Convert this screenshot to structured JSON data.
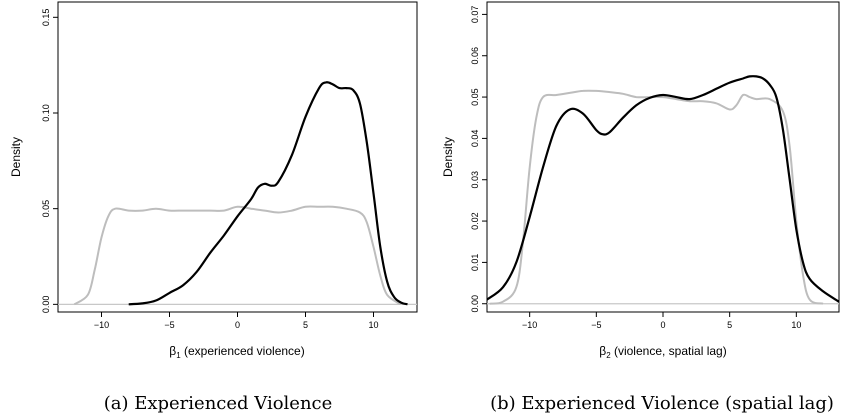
{
  "chart_data": [
    {
      "type": "line",
      "caption": "(a)  Experienced Violence",
      "xlabel_symbol": "β",
      "xlabel_sub": "1",
      "xlabel_rest": " (experienced violence)",
      "ylabel": "Density",
      "xlim": [
        -13.2,
        13.2
      ],
      "ylim": [
        -0.004,
        0.158
      ],
      "xticks": [
        -10,
        -5,
        0,
        5,
        10
      ],
      "yticks": [
        0.0,
        0.05,
        0.1,
        0.15
      ],
      "ytick_labels": [
        "0.00",
        "0.05",
        "0.10",
        "0.15"
      ],
      "baseline": 0,
      "series": [
        {
          "color": "#bdbdbd",
          "x": [
            -12.0,
            -11.0,
            -10.5,
            -10.0,
            -9.5,
            -9.0,
            -8.0,
            -7.0,
            -6.0,
            -5.0,
            -4.0,
            -3.0,
            -2.0,
            -1.0,
            0.0,
            1.0,
            2.0,
            3.0,
            4.0,
            5.0,
            6.0,
            7.0,
            8.0,
            9.0,
            9.5,
            10.0,
            10.5,
            11.0,
            12.0
          ],
          "y": [
            0.0,
            0.005,
            0.018,
            0.035,
            0.046,
            0.05,
            0.049,
            0.049,
            0.05,
            0.049,
            0.049,
            0.049,
            0.049,
            0.049,
            0.051,
            0.05,
            0.049,
            0.048,
            0.049,
            0.051,
            0.051,
            0.051,
            0.05,
            0.048,
            0.043,
            0.03,
            0.015,
            0.005,
            0.0
          ]
        },
        {
          "color": "#000000",
          "x": [
            -8.0,
            -7.0,
            -6.0,
            -5.0,
            -4.0,
            -3.0,
            -2.0,
            -1.0,
            0.0,
            1.0,
            1.5,
            2.0,
            2.5,
            3.0,
            4.0,
            5.0,
            6.0,
            6.5,
            7.0,
            7.5,
            8.0,
            8.5,
            9.0,
            9.5,
            10.0,
            10.5,
            11.0,
            11.5,
            12.0,
            12.5
          ],
          "y": [
            0.0,
            0.0005,
            0.002,
            0.006,
            0.01,
            0.017,
            0.027,
            0.036,
            0.046,
            0.055,
            0.061,
            0.063,
            0.062,
            0.064,
            0.078,
            0.098,
            0.113,
            0.116,
            0.115,
            0.113,
            0.113,
            0.112,
            0.105,
            0.085,
            0.058,
            0.03,
            0.012,
            0.004,
            0.001,
            0.0
          ]
        }
      ]
    },
    {
      "type": "line",
      "caption": "(b)  Experienced Violence (spatial lag)",
      "xlabel_symbol": "β",
      "xlabel_sub": "2",
      "xlabel_rest": " (violence, spatial lag)",
      "ylabel": "Density",
      "xlim": [
        -13.2,
        13.2
      ],
      "ylim": [
        -0.002,
        0.073
      ],
      "xticks": [
        -10,
        -5,
        0,
        5,
        10
      ],
      "yticks": [
        0.0,
        0.01,
        0.02,
        0.03,
        0.04,
        0.05,
        0.06,
        0.07
      ],
      "ytick_labels": [
        "0.00",
        "0.01",
        "0.02",
        "0.03",
        "0.04",
        "0.05",
        "0.06",
        "0.07"
      ],
      "baseline": 0,
      "series": [
        {
          "color": "#bdbdbd",
          "x": [
            -13.0,
            -12.0,
            -11.0,
            -10.5,
            -10.0,
            -9.5,
            -9.0,
            -8.0,
            -7.0,
            -6.0,
            -5.0,
            -4.0,
            -3.0,
            -2.0,
            -1.0,
            0.0,
            1.0,
            2.0,
            3.0,
            4.0,
            5.0,
            5.5,
            6.0,
            6.5,
            7.0,
            8.0,
            9.0,
            9.5,
            10.0,
            10.5,
            11.0,
            12.0
          ],
          "y": [
            0.0,
            0.0005,
            0.004,
            0.015,
            0.033,
            0.045,
            0.05,
            0.0505,
            0.051,
            0.0515,
            0.0515,
            0.0512,
            0.0508,
            0.05,
            0.05,
            0.05,
            0.0495,
            0.049,
            0.049,
            0.0485,
            0.047,
            0.048,
            0.0505,
            0.05,
            0.0495,
            0.0495,
            0.0465,
            0.038,
            0.02,
            0.007,
            0.001,
            0.0
          ]
        },
        {
          "color": "#000000",
          "x": [
            -13.2,
            -12.0,
            -11.0,
            -10.0,
            -9.0,
            -8.0,
            -7.0,
            -6.0,
            -5.0,
            -4.5,
            -4.0,
            -3.0,
            -2.0,
            -1.0,
            0.0,
            1.0,
            2.0,
            3.0,
            4.0,
            5.0,
            6.0,
            6.5,
            7.0,
            7.5,
            8.0,
            8.5,
            9.0,
            9.5,
            10.0,
            10.5,
            11.0,
            12.0,
            13.2
          ],
          "y": [
            0.001,
            0.004,
            0.01,
            0.021,
            0.033,
            0.043,
            0.047,
            0.046,
            0.042,
            0.041,
            0.0415,
            0.045,
            0.048,
            0.0498,
            0.0505,
            0.05,
            0.0495,
            0.0505,
            0.052,
            0.0535,
            0.0545,
            0.055,
            0.055,
            0.0545,
            0.053,
            0.05,
            0.042,
            0.03,
            0.018,
            0.01,
            0.006,
            0.003,
            0.0005
          ]
        }
      ]
    }
  ]
}
